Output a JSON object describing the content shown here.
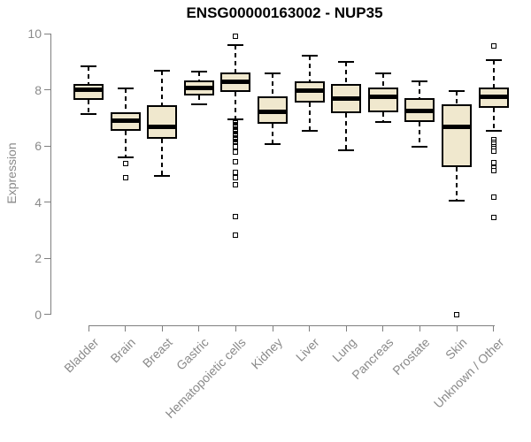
{
  "chart_data": {
    "type": "boxplot",
    "title": "ENSG00000163002 - NUP35",
    "ylabel": "Expression",
    "xlabel": "",
    "ylim": [
      0,
      10
    ],
    "yticks": [
      0,
      2,
      4,
      6,
      8,
      10
    ],
    "grid": false,
    "legend": "none",
    "categories": [
      "Bladder",
      "Brain",
      "Breast",
      "Gastric",
      "Hematopoietic cells",
      "Kidney",
      "Liver",
      "Lung",
      "Pancreas",
      "Prostate",
      "Skin",
      "Unknown / Other"
    ],
    "series": [
      {
        "name": "Bladder",
        "whisker_low": 7.15,
        "q1": 7.65,
        "median": 8.0,
        "q3": 8.2,
        "whisker_high": 8.85,
        "outliers": []
      },
      {
        "name": "Brain",
        "whisker_low": 5.6,
        "q1": 6.55,
        "median": 6.9,
        "q3": 7.2,
        "whisker_high": 8.05,
        "outliers": [
          5.38,
          4.88
        ]
      },
      {
        "name": "Breast",
        "whisker_low": 4.95,
        "q1": 6.25,
        "median": 6.7,
        "q3": 7.45,
        "whisker_high": 8.7,
        "outliers": []
      },
      {
        "name": "Gastric",
        "whisker_low": 7.5,
        "q1": 7.8,
        "median": 8.08,
        "q3": 8.35,
        "whisker_high": 8.65,
        "outliers": []
      },
      {
        "name": "Hematopoietic cells",
        "whisker_low": 6.95,
        "q1": 7.93,
        "median": 8.3,
        "q3": 8.62,
        "whisker_high": 9.6,
        "outliers": [
          9.9,
          6.9,
          6.86,
          6.82,
          6.78,
          6.74,
          6.7,
          6.66,
          6.62,
          6.58,
          6.54,
          6.5,
          6.46,
          6.42,
          6.38,
          6.34,
          6.3,
          6.26,
          6.22,
          6.18,
          6.14,
          6.1,
          6.06,
          6.02,
          5.98,
          5.8,
          5.43,
          5.06,
          4.87,
          4.62,
          3.49,
          2.83
        ]
      },
      {
        "name": "Kidney",
        "whisker_low": 6.08,
        "q1": 6.8,
        "median": 7.22,
        "q3": 7.77,
        "whisker_high": 8.58,
        "outliers": []
      },
      {
        "name": "Liver",
        "whisker_low": 6.53,
        "q1": 7.55,
        "median": 7.98,
        "q3": 8.32,
        "whisker_high": 9.22,
        "outliers": []
      },
      {
        "name": "Lung",
        "whisker_low": 5.85,
        "q1": 7.18,
        "median": 7.7,
        "q3": 8.2,
        "whisker_high": 9.0,
        "outliers": []
      },
      {
        "name": "Pancreas",
        "whisker_low": 6.85,
        "q1": 7.2,
        "median": 7.75,
        "q3": 8.1,
        "whisker_high": 8.58,
        "outliers": []
      },
      {
        "name": "Prostate",
        "whisker_low": 5.98,
        "q1": 6.87,
        "median": 7.25,
        "q3": 7.7,
        "whisker_high": 8.3,
        "outliers": []
      },
      {
        "name": "Skin",
        "whisker_low": 4.06,
        "q1": 5.25,
        "median": 6.69,
        "q3": 7.48,
        "whisker_high": 7.95,
        "outliers": [
          0.0
        ]
      },
      {
        "name": "Unknown / Other",
        "whisker_low": 6.55,
        "q1": 7.37,
        "median": 7.77,
        "q3": 8.1,
        "whisker_high": 9.08,
        "outliers": [
          9.57,
          6.22,
          6.14,
          6.06,
          5.98,
          5.9,
          5.82,
          5.4,
          5.21,
          5.13,
          4.17,
          3.47
        ]
      }
    ],
    "colors": {
      "box_fill": "#F0E8CE",
      "box_stroke": "#000000",
      "median": "#000000",
      "whisker": "#000000",
      "outlier_stroke": "#000000",
      "axis_line": "#7f7f7f",
      "tick_text": "#8a8a8a",
      "title_text": "#000000",
      "background": "#ffffff"
    }
  }
}
